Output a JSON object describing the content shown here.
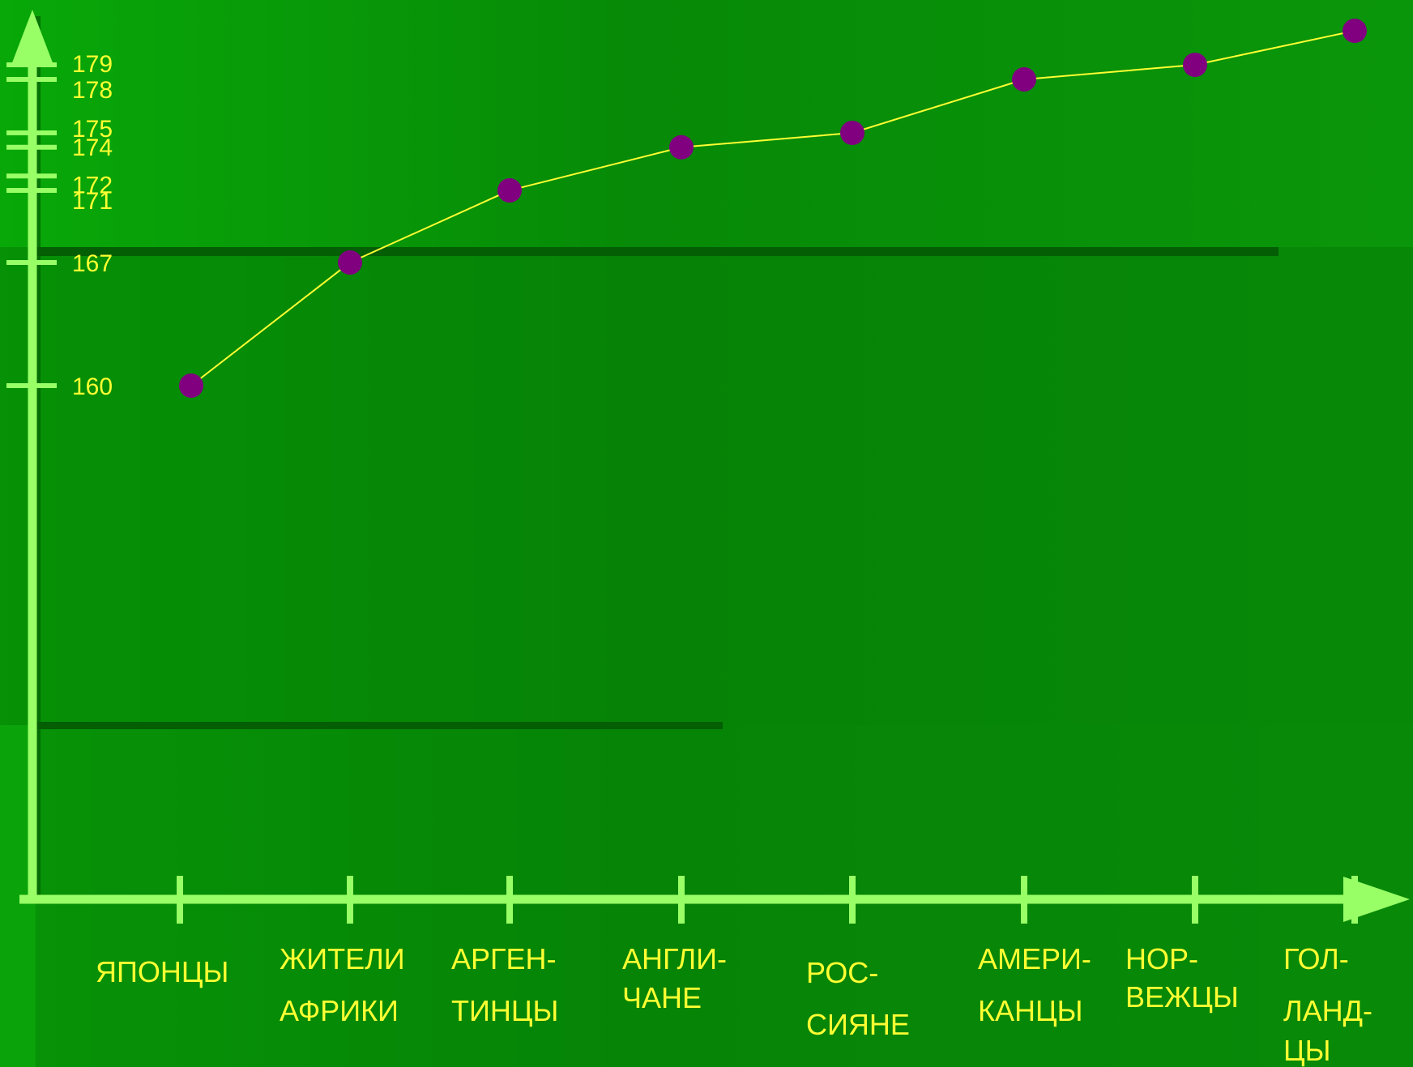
{
  "colors": {
    "background": "#078a07",
    "axis": "#99ff66",
    "text": "#ffff33",
    "line": "#ffff33",
    "marker": "#800080"
  },
  "chart_data": {
    "type": "line",
    "title": "",
    "xlabel": "",
    "ylabel": "",
    "grid": false,
    "legend": "none",
    "categories": [
      "ЯПОНЦЫ",
      "ЖИТЕЛИ АФРИКИ",
      "АРГЕН- ТИНЦЫ",
      "АНГЛИ- ЧАНЕ",
      "РОС- СИЯНЕ",
      "АМЕРИ- КАНЦЫ",
      "НОР- ВЕЖЦЫ",
      "ГОЛ- ЛАНД- ЦЫ"
    ],
    "category_lines": [
      [
        "ЯПОНЦЫ"
      ],
      [
        "ЖИТЕЛИ",
        "АФРИКИ"
      ],
      [
        "АРГЕН-",
        "ТИНЦЫ"
      ],
      [
        "АНГЛИ-",
        "ЧАНЕ"
      ],
      [
        "РОС-",
        "СИЯНЕ"
      ],
      [
        "АМЕРИ-",
        "КАНЦЫ"
      ],
      [
        "НОР-",
        "ВЕЖЦЫ"
      ],
      [
        "ГОЛ-",
        "ЛАНД-",
        "ЦЫ"
      ]
    ],
    "values": [
      160,
      167,
      171,
      174,
      175,
      178,
      179,
      180
    ],
    "y_ticks": [
      160,
      167,
      171,
      172,
      174,
      175,
      178,
      179
    ]
  }
}
